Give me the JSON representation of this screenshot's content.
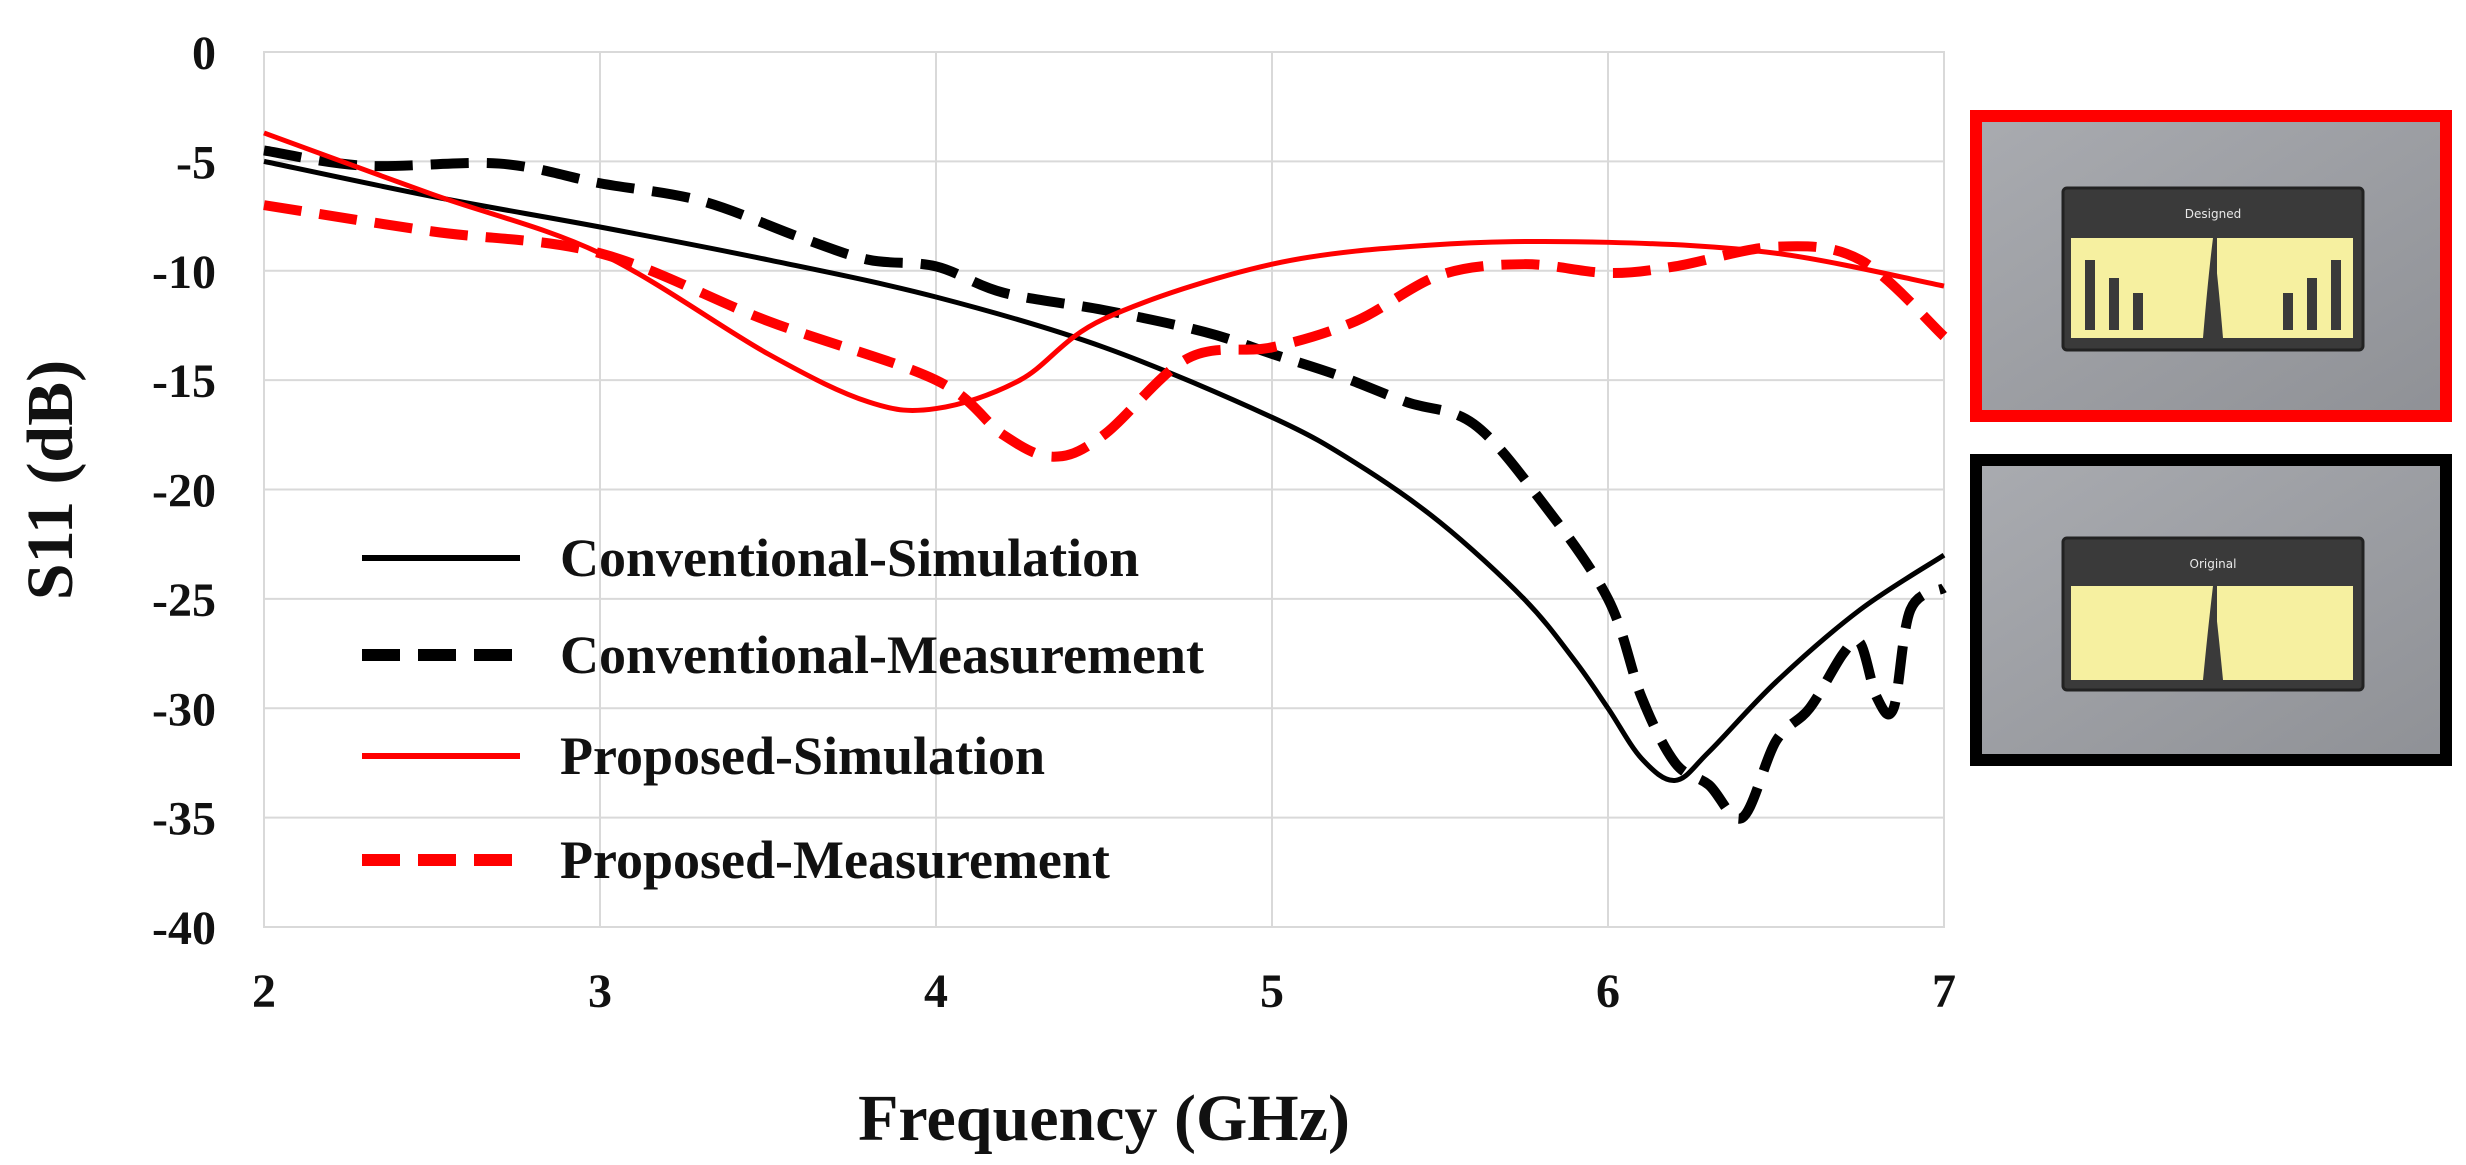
{
  "chart_data": {
    "type": "line",
    "title": "",
    "xlabel": "Frequency (GHz)",
    "ylabel": "S11 (dB)",
    "xlim": [
      2,
      7
    ],
    "ylim": [
      -40,
      0
    ],
    "xticks": [
      2,
      3,
      4,
      5,
      6,
      7
    ],
    "yticks": [
      0,
      -5,
      -10,
      -15,
      -20,
      -25,
      -30,
      -35,
      -40
    ],
    "xtick_labels": [
      "2",
      "3",
      "4",
      "5",
      "6",
      "7"
    ],
    "ytick_labels": [
      "0",
      "-5",
      "-10",
      "-15",
      "-20",
      "-25",
      "-30",
      "-35",
      "-40"
    ],
    "grid": true,
    "legend_position": "lower-left",
    "series": [
      {
        "name": "Conventional-Simulation",
        "color": "#000000",
        "dash": "solid",
        "x": [
          2.0,
          2.5,
          3.0,
          3.5,
          4.0,
          4.5,
          5.0,
          5.25,
          5.5,
          5.75,
          5.9,
          6.0,
          6.1,
          6.2,
          6.3,
          6.5,
          6.75,
          7.0
        ],
        "y": [
          -5.0,
          -6.6,
          -8.0,
          -9.5,
          -11.2,
          -13.5,
          -16.7,
          -18.8,
          -21.5,
          -25.0,
          -27.8,
          -30.0,
          -32.3,
          -33.3,
          -32.0,
          -28.8,
          -25.5,
          -23.0
        ]
      },
      {
        "name": "Conventional-Measurement",
        "color": "#000000",
        "dash": "dashed",
        "x": [
          2.0,
          2.3,
          2.7,
          3.0,
          3.3,
          3.6,
          3.8,
          4.0,
          4.2,
          4.5,
          4.8,
          5.0,
          5.2,
          5.4,
          5.6,
          5.8,
          6.0,
          6.1,
          6.2,
          6.3,
          6.4,
          6.5,
          6.6,
          6.7,
          6.75,
          6.8,
          6.85,
          6.9,
          7.0
        ],
        "y": [
          -4.5,
          -5.2,
          -5.1,
          -6.0,
          -6.8,
          -8.5,
          -9.5,
          -9.8,
          -11.0,
          -11.8,
          -12.8,
          -13.8,
          -14.8,
          -16.0,
          -17.0,
          -20.5,
          -25.0,
          -29.5,
          -32.5,
          -33.5,
          -35.0,
          -31.5,
          -30.0,
          -27.5,
          -27.0,
          -29.5,
          -30.0,
          -25.5,
          -24.5
        ]
      },
      {
        "name": "Proposed-Simulation",
        "color": "#ff0000",
        "dash": "solid",
        "x": [
          2.0,
          2.5,
          3.0,
          3.5,
          3.8,
          4.0,
          4.25,
          4.5,
          5.0,
          5.5,
          6.0,
          6.5,
          7.0
        ],
        "y": [
          -3.7,
          -6.5,
          -9.2,
          -13.8,
          -16.0,
          -16.3,
          -15.0,
          -12.2,
          -9.7,
          -8.8,
          -8.7,
          -9.2,
          -10.7
        ]
      },
      {
        "name": "Proposed-Measurement",
        "color": "#ff0000",
        "dash": "dashed",
        "x": [
          2.0,
          2.5,
          3.0,
          3.5,
          4.0,
          4.2,
          4.35,
          4.5,
          4.75,
          5.0,
          5.25,
          5.5,
          5.75,
          6.0,
          6.2,
          6.5,
          6.75,
          7.0
        ],
        "y": [
          -7.0,
          -8.2,
          -9.2,
          -12.3,
          -15.0,
          -17.5,
          -18.5,
          -17.5,
          -14.0,
          -13.5,
          -12.3,
          -10.2,
          -9.7,
          -10.1,
          -9.8,
          -8.9,
          -9.5,
          -13.0
        ]
      }
    ]
  },
  "insets": [
    {
      "label": "proposed-antenna-photo",
      "frame_color": "#ff0000",
      "pcb_text": "Designed",
      "slots": true
    },
    {
      "label": "conventional-antenna-photo",
      "frame_color": "#000000",
      "pcb_text": "Original",
      "slots": false
    }
  ]
}
